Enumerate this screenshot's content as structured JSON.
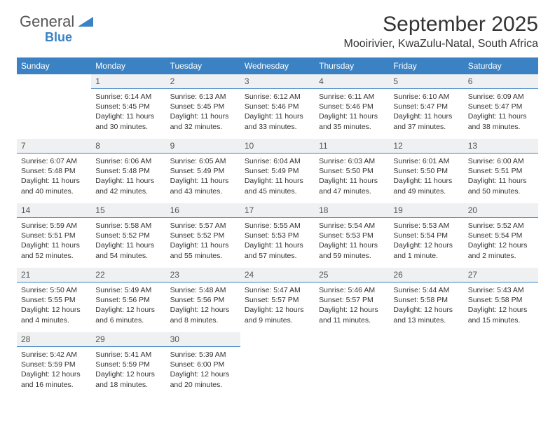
{
  "logo": {
    "word1": "General",
    "word2": "Blue"
  },
  "title": "September 2025",
  "location": "Mooirivier, KwaZulu-Natal, South Africa",
  "colors": {
    "header_bg": "#3b82c4",
    "daynum_bg": "#eef0f2",
    "rule": "#3b82c4"
  },
  "weekdays": [
    "Sunday",
    "Monday",
    "Tuesday",
    "Wednesday",
    "Thursday",
    "Friday",
    "Saturday"
  ],
  "weeks": [
    [
      null,
      {
        "n": "1",
        "sr": "Sunrise: 6:14 AM",
        "ss": "Sunset: 5:45 PM",
        "d1": "Daylight: 11 hours",
        "d2": "and 30 minutes."
      },
      {
        "n": "2",
        "sr": "Sunrise: 6:13 AM",
        "ss": "Sunset: 5:45 PM",
        "d1": "Daylight: 11 hours",
        "d2": "and 32 minutes."
      },
      {
        "n": "3",
        "sr": "Sunrise: 6:12 AM",
        "ss": "Sunset: 5:46 PM",
        "d1": "Daylight: 11 hours",
        "d2": "and 33 minutes."
      },
      {
        "n": "4",
        "sr": "Sunrise: 6:11 AM",
        "ss": "Sunset: 5:46 PM",
        "d1": "Daylight: 11 hours",
        "d2": "and 35 minutes."
      },
      {
        "n": "5",
        "sr": "Sunrise: 6:10 AM",
        "ss": "Sunset: 5:47 PM",
        "d1": "Daylight: 11 hours",
        "d2": "and 37 minutes."
      },
      {
        "n": "6",
        "sr": "Sunrise: 6:09 AM",
        "ss": "Sunset: 5:47 PM",
        "d1": "Daylight: 11 hours",
        "d2": "and 38 minutes."
      }
    ],
    [
      {
        "n": "7",
        "sr": "Sunrise: 6:07 AM",
        "ss": "Sunset: 5:48 PM",
        "d1": "Daylight: 11 hours",
        "d2": "and 40 minutes."
      },
      {
        "n": "8",
        "sr": "Sunrise: 6:06 AM",
        "ss": "Sunset: 5:48 PM",
        "d1": "Daylight: 11 hours",
        "d2": "and 42 minutes."
      },
      {
        "n": "9",
        "sr": "Sunrise: 6:05 AM",
        "ss": "Sunset: 5:49 PM",
        "d1": "Daylight: 11 hours",
        "d2": "and 43 minutes."
      },
      {
        "n": "10",
        "sr": "Sunrise: 6:04 AM",
        "ss": "Sunset: 5:49 PM",
        "d1": "Daylight: 11 hours",
        "d2": "and 45 minutes."
      },
      {
        "n": "11",
        "sr": "Sunrise: 6:03 AM",
        "ss": "Sunset: 5:50 PM",
        "d1": "Daylight: 11 hours",
        "d2": "and 47 minutes."
      },
      {
        "n": "12",
        "sr": "Sunrise: 6:01 AM",
        "ss": "Sunset: 5:50 PM",
        "d1": "Daylight: 11 hours",
        "d2": "and 49 minutes."
      },
      {
        "n": "13",
        "sr": "Sunrise: 6:00 AM",
        "ss": "Sunset: 5:51 PM",
        "d1": "Daylight: 11 hours",
        "d2": "and 50 minutes."
      }
    ],
    [
      {
        "n": "14",
        "sr": "Sunrise: 5:59 AM",
        "ss": "Sunset: 5:51 PM",
        "d1": "Daylight: 11 hours",
        "d2": "and 52 minutes."
      },
      {
        "n": "15",
        "sr": "Sunrise: 5:58 AM",
        "ss": "Sunset: 5:52 PM",
        "d1": "Daylight: 11 hours",
        "d2": "and 54 minutes."
      },
      {
        "n": "16",
        "sr": "Sunrise: 5:57 AM",
        "ss": "Sunset: 5:52 PM",
        "d1": "Daylight: 11 hours",
        "d2": "and 55 minutes."
      },
      {
        "n": "17",
        "sr": "Sunrise: 5:55 AM",
        "ss": "Sunset: 5:53 PM",
        "d1": "Daylight: 11 hours",
        "d2": "and 57 minutes."
      },
      {
        "n": "18",
        "sr": "Sunrise: 5:54 AM",
        "ss": "Sunset: 5:53 PM",
        "d1": "Daylight: 11 hours",
        "d2": "and 59 minutes."
      },
      {
        "n": "19",
        "sr": "Sunrise: 5:53 AM",
        "ss": "Sunset: 5:54 PM",
        "d1": "Daylight: 12 hours",
        "d2": "and 1 minute."
      },
      {
        "n": "20",
        "sr": "Sunrise: 5:52 AM",
        "ss": "Sunset: 5:54 PM",
        "d1": "Daylight: 12 hours",
        "d2": "and 2 minutes."
      }
    ],
    [
      {
        "n": "21",
        "sr": "Sunrise: 5:50 AM",
        "ss": "Sunset: 5:55 PM",
        "d1": "Daylight: 12 hours",
        "d2": "and 4 minutes."
      },
      {
        "n": "22",
        "sr": "Sunrise: 5:49 AM",
        "ss": "Sunset: 5:56 PM",
        "d1": "Daylight: 12 hours",
        "d2": "and 6 minutes."
      },
      {
        "n": "23",
        "sr": "Sunrise: 5:48 AM",
        "ss": "Sunset: 5:56 PM",
        "d1": "Daylight: 12 hours",
        "d2": "and 8 minutes."
      },
      {
        "n": "24",
        "sr": "Sunrise: 5:47 AM",
        "ss": "Sunset: 5:57 PM",
        "d1": "Daylight: 12 hours",
        "d2": "and 9 minutes."
      },
      {
        "n": "25",
        "sr": "Sunrise: 5:46 AM",
        "ss": "Sunset: 5:57 PM",
        "d1": "Daylight: 12 hours",
        "d2": "and 11 minutes."
      },
      {
        "n": "26",
        "sr": "Sunrise: 5:44 AM",
        "ss": "Sunset: 5:58 PM",
        "d1": "Daylight: 12 hours",
        "d2": "and 13 minutes."
      },
      {
        "n": "27",
        "sr": "Sunrise: 5:43 AM",
        "ss": "Sunset: 5:58 PM",
        "d1": "Daylight: 12 hours",
        "d2": "and 15 minutes."
      }
    ],
    [
      {
        "n": "28",
        "sr": "Sunrise: 5:42 AM",
        "ss": "Sunset: 5:59 PM",
        "d1": "Daylight: 12 hours",
        "d2": "and 16 minutes."
      },
      {
        "n": "29",
        "sr": "Sunrise: 5:41 AM",
        "ss": "Sunset: 5:59 PM",
        "d1": "Daylight: 12 hours",
        "d2": "and 18 minutes."
      },
      {
        "n": "30",
        "sr": "Sunrise: 5:39 AM",
        "ss": "Sunset: 6:00 PM",
        "d1": "Daylight: 12 hours",
        "d2": "and 20 minutes."
      },
      null,
      null,
      null,
      null
    ]
  ]
}
